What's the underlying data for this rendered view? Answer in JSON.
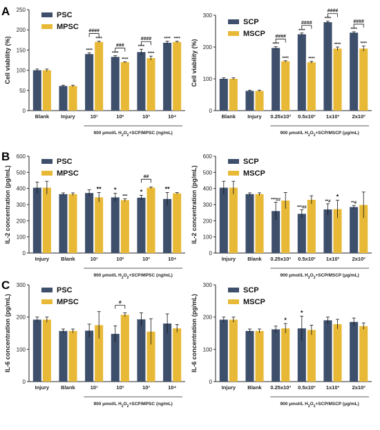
{
  "colors": {
    "series1": "#3d4f6b",
    "series2": "#e8b936",
    "axis": "#222222"
  },
  "panel_labels": [
    "A",
    "B",
    "C"
  ],
  "chart_data": [
    {
      "id": "A-left",
      "type": "bar",
      "panel_label": "A",
      "ylabel": "Cell viability (%)",
      "xlabel_prefix": "900 μmol/L H",
      "xlabel_sub": "2",
      "xlabel_mid": "O",
      "xlabel_suffix": "+SCP/MPSC (ng/mL)",
      "ylim": [
        0,
        250
      ],
      "yticks": [
        "0",
        "50",
        "100",
        "150",
        "200",
        "250"
      ],
      "categories": [
        "Blank",
        "Injury",
        "10¹",
        "10²",
        "10³",
        "10⁴"
      ],
      "series": [
        {
          "name": "PSC",
          "values": [
            100,
            61,
            140,
            133,
            145,
            168
          ],
          "errors": [
            3,
            2,
            3,
            3,
            7,
            4
          ],
          "labels": [
            "",
            "",
            "****",
            "****",
            "****",
            "****"
          ]
        },
        {
          "name": "MPSC",
          "values": [
            100,
            61,
            170,
            120,
            130,
            170
          ],
          "errors": [
            3,
            2,
            2,
            1,
            5,
            2
          ],
          "labels": [
            "",
            "",
            "****",
            "****",
            "****",
            "****"
          ]
        }
      ],
      "brackets": [
        {
          "category": 2,
          "label": "####"
        },
        {
          "category": 3,
          "label": "###"
        },
        {
          "category": 4,
          "label": "####"
        }
      ]
    },
    {
      "id": "A-right",
      "type": "bar",
      "ylabel": "Cell viability (%)",
      "xlabel_prefix": "900 μmol/L H",
      "xlabel_sub": "2",
      "xlabel_mid": "O",
      "xlabel_suffix": "+SCP/MSCP (μg/mL)",
      "ylim": [
        0,
        300
      ],
      "yticks": [
        "0",
        "100",
        "200",
        "300"
      ],
      "categories": [
        "Blank",
        "Injury",
        "0.25x10³",
        "0.5x10³",
        "1x10³",
        "2x10³"
      ],
      "series": [
        {
          "name": "SCP",
          "values": [
            100,
            62,
            197,
            240,
            278,
            245
          ],
          "errors": [
            3,
            2,
            4,
            4,
            3,
            3
          ],
          "labels": [
            "",
            "",
            "****",
            "****",
            "****",
            "****"
          ]
        },
        {
          "name": "MSCP",
          "values": [
            100,
            62,
            155,
            152,
            195,
            195
          ],
          "errors": [
            3,
            2,
            2,
            3,
            5,
            8
          ],
          "labels": [
            "",
            "",
            "****",
            "****",
            "****",
            "****"
          ]
        }
      ],
      "brackets": [
        {
          "category": 2,
          "label": "####"
        },
        {
          "category": 3,
          "label": "####"
        },
        {
          "category": 4,
          "label": "####"
        },
        {
          "category": 5,
          "label": "####"
        }
      ]
    },
    {
      "id": "B-left",
      "type": "bar",
      "panel_label": "B",
      "ylabel": "IL-2 concentration (pg/mL)",
      "xlabel_prefix": "900 μmol/L H",
      "xlabel_sub": "2",
      "xlabel_mid": "O",
      "xlabel_suffix": "+SCP/MPSC (ng/mL)",
      "ylim": [
        0,
        600
      ],
      "yticks": [
        "0",
        "100",
        "200",
        "300",
        "400",
        "500",
        "600"
      ],
      "categories": [
        "Injury",
        "Blank",
        "10¹",
        "10²",
        "10³",
        "10⁴"
      ],
      "series": [
        {
          "name": "PSC",
          "values": [
            405,
            365,
            372,
            345,
            343,
            335
          ],
          "errors": [
            35,
            8,
            20,
            25,
            15,
            40
          ],
          "labels": [
            "",
            "",
            "",
            "*",
            "*",
            "**"
          ]
        },
        {
          "name": "MPSC",
          "values": [
            405,
            365,
            345,
            328,
            405,
            370
          ],
          "errors": [
            40,
            8,
            30,
            8,
            5,
            5
          ],
          "labels": [
            "",
            "",
            "**",
            "***",
            "",
            ""
          ]
        }
      ],
      "brackets": [
        {
          "category": 4,
          "label": "##"
        }
      ]
    },
    {
      "id": "B-right",
      "type": "bar",
      "ylabel": "IL-2 concentration (pg/mL)",
      "xlabel_prefix": "900 μmol/L H",
      "xlabel_sub": "2",
      "xlabel_mid": "O",
      "xlabel_suffix": "+SCP/MSCP (μg/mL)",
      "ylim": [
        0,
        600
      ],
      "yticks": [
        "0",
        "100",
        "200",
        "300",
        "400",
        "500",
        "600"
      ],
      "categories": [
        "Injury",
        "Blank",
        "0.25x10³",
        "0.5x10³",
        "1x10³",
        "2x10³"
      ],
      "series": [
        {
          "name": "SCP",
          "values": [
            405,
            365,
            260,
            243,
            270,
            285
          ],
          "errors": [
            40,
            8,
            55,
            25,
            35,
            10
          ],
          "labels": [
            "",
            "",
            "***##",
            "***##",
            "**#",
            "**#"
          ]
        },
        {
          "name": "MSCP",
          "values": [
            405,
            365,
            325,
            330,
            272,
            298
          ],
          "errors": [
            40,
            8,
            50,
            25,
            55,
            80
          ],
          "labels": [
            "",
            "",
            "",
            "",
            "*",
            ""
          ]
        }
      ],
      "brackets": []
    },
    {
      "id": "C-left",
      "type": "bar",
      "panel_label": "C",
      "ylabel": "IL-6 concentration (pg/mL)",
      "xlabel_prefix": "900 μmol/L H",
      "xlabel_sub": "2",
      "xlabel_mid": "O",
      "xlabel_suffix": "+SCP/MPSC (ng/mL)",
      "ylim": [
        0,
        300
      ],
      "yticks": [
        "0",
        "100",
        "200",
        "300"
      ],
      "categories": [
        "Injury",
        "Blank",
        "10¹",
        "10²",
        "10³",
        "10⁴"
      ],
      "series": [
        {
          "name": "PSC",
          "values": [
            192,
            157,
            158,
            148,
            193,
            180
          ],
          "errors": [
            8,
            6,
            20,
            25,
            20,
            30
          ],
          "labels": [
            "",
            "",
            "",
            "",
            "",
            ""
          ]
        },
        {
          "name": "MPSC",
          "values": [
            192,
            157,
            175,
            207,
            155,
            165
          ],
          "errors": [
            8,
            6,
            42,
            6,
            40,
            12
          ],
          "labels": [
            "",
            "",
            "",
            "",
            "",
            ""
          ]
        }
      ],
      "brackets": [
        {
          "category": 3,
          "label": "#"
        }
      ]
    },
    {
      "id": "C-right",
      "type": "bar",
      "ylabel": "IL-6 concentration (pg/mL)",
      "xlabel_prefix": "900 μmol/L H",
      "xlabel_sub": "2",
      "xlabel_mid": "O",
      "xlabel_suffix": "+SCP/MSCP (μg/mL)",
      "ylim": [
        0,
        300
      ],
      "yticks": [
        "0",
        "100",
        "200",
        "300"
      ],
      "categories": [
        "Injury",
        "Blank",
        "0.25x10³",
        "0.5x10³",
        "1x10³",
        "2x10³"
      ],
      "series": [
        {
          "name": "SCP",
          "values": [
            192,
            157,
            162,
            165,
            190,
            185
          ],
          "errors": [
            8,
            6,
            10,
            38,
            10,
            12
          ],
          "labels": [
            "",
            "",
            "",
            "*",
            "",
            ""
          ]
        },
        {
          "name": "MSCP",
          "values": [
            192,
            157,
            165,
            160,
            178,
            172
          ],
          "errors": [
            8,
            6,
            15,
            15,
            15,
            10
          ],
          "labels": [
            "",
            "",
            "*",
            "",
            "",
            ""
          ]
        }
      ],
      "brackets": []
    }
  ]
}
